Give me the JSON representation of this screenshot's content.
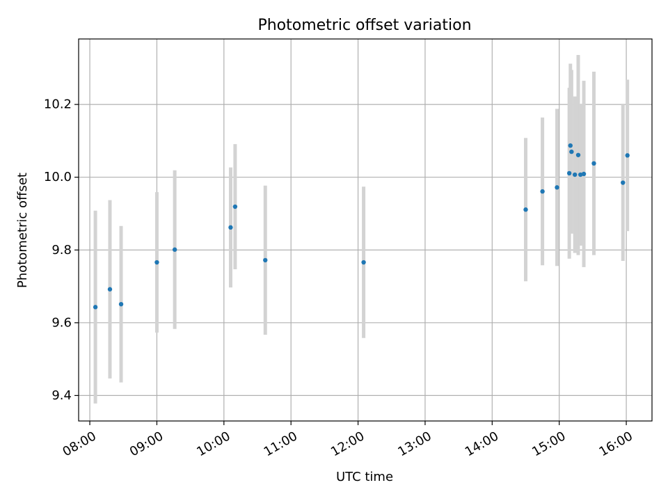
{
  "chart_data": {
    "type": "scatter",
    "title": "Photometric offset variation",
    "xlabel": "UTC time",
    "ylabel": "Photometric offset",
    "grid": true,
    "x_ticks": [
      "08:00",
      "09:00",
      "10:00",
      "11:00",
      "12:00",
      "13:00",
      "14:00",
      "15:00",
      "16:00"
    ],
    "y_ticks": [
      "9.4",
      "9.6",
      "9.8",
      "10.0",
      "10.2"
    ],
    "xlim": [
      "07:50",
      "16:23"
    ],
    "ylim": [
      9.33,
      10.38
    ],
    "colors": {
      "point": "#1f77b4",
      "errorbar": "#d3d3d3",
      "grid": "#b0b0b0"
    },
    "series": [
      {
        "points": [
          {
            "x": "08:05",
            "y": 9.643,
            "err": 0.265
          },
          {
            "x": "08:18",
            "y": 9.692,
            "err": 0.245
          },
          {
            "x": "08:28",
            "y": 9.651,
            "err": 0.215
          },
          {
            "x": "09:00",
            "y": 9.766,
            "err": 0.193
          },
          {
            "x": "09:16",
            "y": 9.801,
            "err": 0.218
          },
          {
            "x": "10:06",
            "y": 9.862,
            "err": 0.165
          },
          {
            "x": "10:10",
            "y": 9.919,
            "err": 0.172
          },
          {
            "x": "10:37",
            "y": 9.772,
            "err": 0.205
          },
          {
            "x": "12:05",
            "y": 9.766,
            "err": 0.208
          },
          {
            "x": "14:30",
            "y": 9.911,
            "err": 0.197
          },
          {
            "x": "14:45",
            "y": 9.961,
            "err": 0.203
          },
          {
            "x": "14:58",
            "y": 9.972,
            "err": 0.216
          },
          {
            "x": "15:09",
            "y": 10.011,
            "err": 0.235
          },
          {
            "x": "15:10",
            "y": 10.087,
            "err": 0.225
          },
          {
            "x": "15:11",
            "y": 10.07,
            "err": 0.225
          },
          {
            "x": "15:14",
            "y": 10.007,
            "err": 0.215
          },
          {
            "x": "15:17",
            "y": 10.061,
            "err": 0.275
          },
          {
            "x": "15:19",
            "y": 10.007,
            "err": 0.195
          },
          {
            "x": "15:22",
            "y": 10.009,
            "err": 0.256
          },
          {
            "x": "15:31",
            "y": 10.038,
            "err": 0.252
          },
          {
            "x": "15:57",
            "y": 9.985,
            "err": 0.215
          },
          {
            "x": "16:01",
            "y": 10.06,
            "err": 0.208
          }
        ]
      }
    ]
  }
}
